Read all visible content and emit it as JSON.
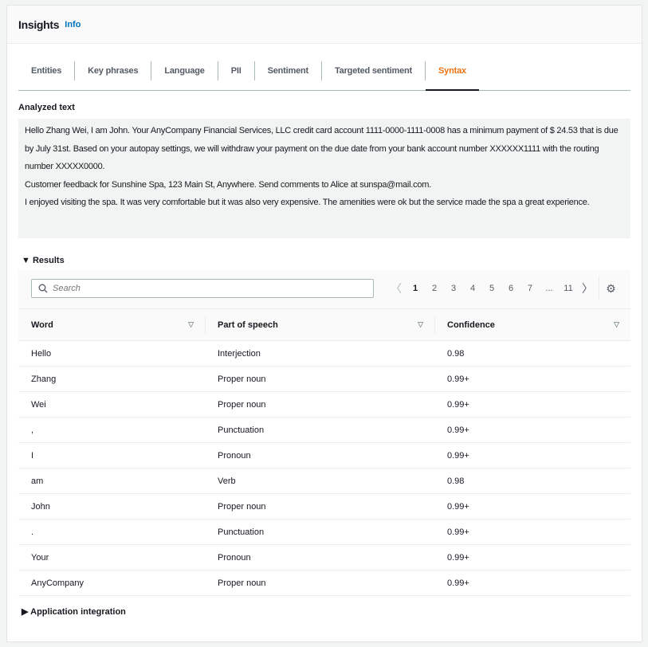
{
  "header": {
    "title": "Insights",
    "info": "Info"
  },
  "tabs": [
    {
      "label": "Entities"
    },
    {
      "label": "Key phrases"
    },
    {
      "label": "Language"
    },
    {
      "label": "PII"
    },
    {
      "label": "Sentiment"
    },
    {
      "label": "Targeted sentiment"
    },
    {
      "label": "Syntax",
      "active": true
    }
  ],
  "analyzed": {
    "label": "Analyzed text",
    "lines": [
      "Hello Zhang Wei, I am John. Your AnyCompany Financial Services, LLC credit card account 1111-0000-1111-0008 has a minimum payment of $ 24.53 that is due by July 31st. Based on your autopay settings, we will withdraw your payment on the due date from your bank account number XXXXXX1111 with the routing number XXXXX0000.",
      "Customer feedback for Sunshine Spa, 123 Main St, Anywhere. Send comments to Alice at sunspa@mail.com.",
      "I enjoyed visiting the spa. It was very comfortable but it was also very expensive. The amenities were ok but the service made the spa a great experience."
    ]
  },
  "results": {
    "label": "Results",
    "search_placeholder": "Search",
    "pages": [
      "1",
      "2",
      "3",
      "4",
      "5",
      "6",
      "7",
      "...",
      "11"
    ],
    "current_page": "1",
    "columns": [
      "Word",
      "Part of speech",
      "Confidence"
    ],
    "rows": [
      [
        "Hello",
        "Interjection",
        "0.98"
      ],
      [
        "Zhang",
        "Proper noun",
        "0.99+"
      ],
      [
        "Wei",
        "Proper noun",
        "0.99+"
      ],
      [
        ",",
        "Punctuation",
        "0.99+"
      ],
      [
        "I",
        "Pronoun",
        "0.99+"
      ],
      [
        "am",
        "Verb",
        "0.98"
      ],
      [
        "John",
        "Proper noun",
        "0.99+"
      ],
      [
        ".",
        "Punctuation",
        "0.99+"
      ],
      [
        "Your",
        "Pronoun",
        "0.99+"
      ],
      [
        "AnyCompany",
        "Proper noun",
        "0.99+"
      ]
    ]
  },
  "app_integration": {
    "label": "Application integration"
  },
  "colors": {
    "accent": "#ec7211",
    "link": "#0073bb"
  }
}
